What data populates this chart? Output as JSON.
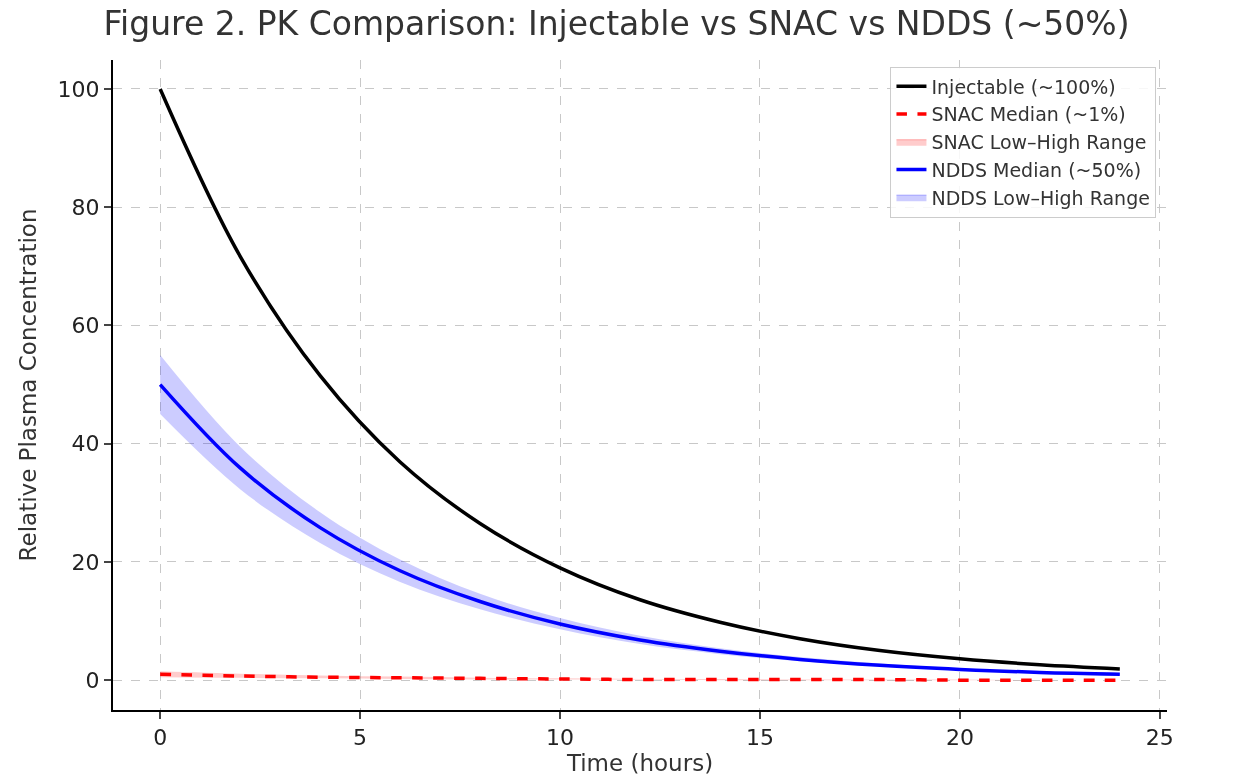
{
  "chart_data": {
    "type": "line",
    "title": "Figure 2. PK Comparison: Injectable vs SNAC vs NDDS (~50%)",
    "xlabel": "Time (hours)",
    "ylabel": "Relative Plasma Concentration",
    "x": [
      0,
      2,
      4,
      6,
      8,
      10,
      12,
      14,
      16,
      18,
      20,
      22,
      24
    ],
    "series": [
      {
        "name": "Injectable (~100%)",
        "color": "#000000",
        "line_style": "solid",
        "values": [
          100,
          71.7,
          51.5,
          36.9,
          26.5,
          19.0,
          13.6,
          9.8,
          7.0,
          5.0,
          3.6,
          2.6,
          1.9
        ]
      },
      {
        "name": "SNAC Median (~1%)",
        "color": "#ff0000",
        "line_style": "dashed",
        "values": [
          1,
          0.7,
          0.5,
          0.4,
          0.3,
          0.2,
          0.1,
          0.1,
          0.1,
          0.1,
          0,
          0,
          0
        ],
        "lower": [
          0.5,
          0.4,
          0.3,
          0.2,
          0.1,
          0.1,
          0.1,
          0,
          0,
          0,
          0,
          0,
          0
        ],
        "upper": [
          1.5,
          1.1,
          0.8,
          0.6,
          0.4,
          0.3,
          0.2,
          0.2,
          0.1,
          0.1,
          0.1,
          0,
          0
        ]
      },
      {
        "name": "SNAC Low–High Range",
        "type": "area",
        "color": "#ff0000",
        "values": [
          null,
          null,
          null,
          null,
          null,
          null,
          null,
          null,
          null,
          null,
          null,
          null,
          null
        ]
      },
      {
        "name": "NDDS Median (~50%)",
        "color": "#0000ff",
        "line_style": "solid",
        "values": [
          50,
          35.9,
          25.8,
          18.5,
          13.3,
          9.5,
          6.8,
          4.9,
          3.5,
          2.5,
          1.8,
          1.3,
          1.0
        ],
        "lower": [
          45,
          32.3,
          23.2,
          16.6,
          12.0,
          8.6,
          6.1,
          4.4,
          3.2,
          2.3,
          1.6,
          1.2,
          0.9
        ],
        "upper": [
          55,
          39.5,
          28.4,
          20.4,
          14.6,
          10.5,
          7.5,
          5.4,
          3.9,
          2.8,
          2.0,
          1.4,
          1.1
        ]
      },
      {
        "name": "NDDS Low–High Range",
        "type": "area",
        "color": "#0000ff",
        "values": [
          null,
          null,
          null,
          null,
          null,
          null,
          null,
          null,
          null,
          null,
          null,
          null,
          null
        ]
      }
    ],
    "xlim": [
      -1.18,
      25.18
    ],
    "ylim": [
      -5.05,
      104.9
    ],
    "xticks": [
      0,
      5,
      10,
      15,
      20,
      25
    ],
    "yticks": [
      0,
      20,
      40,
      60,
      80,
      100
    ],
    "grid": true,
    "legend": "top right",
    "marker": "none"
  }
}
